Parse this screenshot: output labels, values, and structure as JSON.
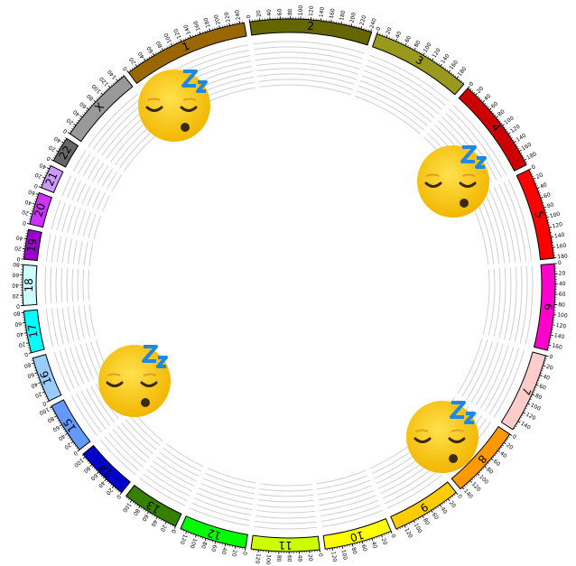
{
  "chromosomes": [
    {
      "label": "1",
      "size": 249,
      "color": "#996600",
      "ticks": [
        0,
        20,
        40,
        60,
        80,
        100,
        120,
        140,
        160,
        180,
        200,
        220,
        240
      ]
    },
    {
      "label": "2",
      "size": 242,
      "color": "#666600",
      "ticks": [
        0,
        20,
        40,
        60,
        80,
        100,
        120,
        140,
        160,
        180,
        200,
        220,
        240
      ]
    },
    {
      "label": "3",
      "size": 198,
      "color": "#99991e",
      "ticks": [
        0,
        20,
        40,
        60,
        80,
        100,
        120,
        140,
        160,
        180
      ]
    },
    {
      "label": "4",
      "size": 190,
      "color": "#cc0000",
      "ticks": [
        0,
        20,
        40,
        60,
        80,
        100,
        120,
        140,
        160,
        180
      ]
    },
    {
      "label": "5",
      "size": 181,
      "color": "#ff0000",
      "ticks": [
        0,
        20,
        40,
        60,
        80,
        100,
        120,
        140,
        160,
        180
      ]
    },
    {
      "label": "6",
      "size": 171,
      "color": "#ff00cc",
      "ticks": [
        0,
        20,
        40,
        60,
        80,
        100,
        120,
        140,
        160
      ]
    },
    {
      "label": "7",
      "size": 159,
      "color": "#ffcccc",
      "ticks": [
        0,
        20,
        40,
        60,
        80,
        100,
        120,
        140
      ]
    },
    {
      "label": "8",
      "size": 145,
      "color": "#ff9900",
      "ticks": [
        0,
        20,
        40,
        60,
        80,
        100,
        120,
        140
      ]
    },
    {
      "label": "9",
      "size": 138,
      "color": "#ffcc00",
      "ticks": [
        0,
        20,
        40,
        60,
        80,
        100,
        120
      ]
    },
    {
      "label": "10",
      "size": 134,
      "color": "#ffff00",
      "ticks": [
        0,
        20,
        40,
        60,
        80,
        100,
        120
      ]
    },
    {
      "label": "11",
      "size": 135,
      "color": "#ccff00",
      "ticks": [
        0,
        20,
        40,
        60,
        80,
        100,
        120
      ]
    },
    {
      "label": "12",
      "size": 133,
      "color": "#00ff00",
      "ticks": [
        0,
        20,
        40,
        60,
        80,
        100,
        120
      ]
    },
    {
      "label": "13",
      "size": 114,
      "color": "#358000",
      "ticks": [
        0,
        20,
        40,
        60,
        80,
        100
      ]
    },
    {
      "label": "14",
      "size": 107,
      "color": "#0000cc",
      "ticks": [
        0,
        20,
        40,
        60,
        80,
        100
      ]
    },
    {
      "label": "15",
      "size": 102,
      "color": "#6699ff",
      "ticks": [
        0,
        20,
        40,
        60,
        80,
        100
      ]
    },
    {
      "label": "16",
      "size": 90,
      "color": "#99ccff",
      "ticks": [
        0,
        20,
        40,
        60,
        80
      ]
    },
    {
      "label": "17",
      "size": 83,
      "color": "#00ffff",
      "ticks": [
        0,
        20,
        40,
        60,
        80
      ]
    },
    {
      "label": "18",
      "size": 80,
      "color": "#ccffff",
      "ticks": [
        0,
        20,
        40,
        60,
        80
      ]
    },
    {
      "label": "19",
      "size": 59,
      "color": "#9900cc",
      "ticks": [
        0,
        20,
        40
      ]
    },
    {
      "label": "20",
      "size": 64,
      "color": "#cc33ff",
      "ticks": [
        0,
        20,
        40,
        60
      ]
    },
    {
      "label": "21",
      "size": 47,
      "color": "#cc99ff",
      "ticks": [
        0,
        20,
        40
      ]
    },
    {
      "label": "22",
      "size": 51,
      "color": "#666666",
      "ticks": [
        0,
        20,
        40
      ]
    },
    {
      "label": "X",
      "size": 156,
      "color": "#999999",
      "ticks": [
        0,
        20,
        40,
        60,
        80,
        100,
        120,
        140
      ]
    }
  ]
}
